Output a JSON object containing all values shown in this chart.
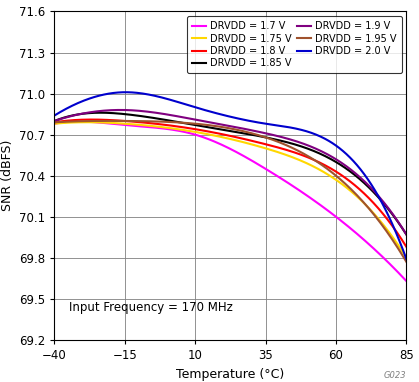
{
  "xlabel": "Temperature (°C)",
  "ylabel": "SNR (dBFS)",
  "xlim": [
    -40,
    85
  ],
  "ylim": [
    69.2,
    71.6
  ],
  "yticks": [
    69.2,
    69.5,
    69.8,
    70.1,
    70.4,
    70.7,
    71.0,
    71.3,
    71.6
  ],
  "xticks": [
    -40,
    -15,
    10,
    35,
    60,
    85
  ],
  "annotation": "Input Frequency = 170 MHz",
  "watermark": "G023",
  "series": [
    {
      "label": "DRVDD = 1.7 V",
      "color": "#FF00FF",
      "temp": [
        -40,
        -25,
        -15,
        10,
        35,
        60,
        85
      ],
      "snr": [
        70.78,
        70.79,
        70.77,
        70.7,
        70.45,
        70.1,
        69.63
      ]
    },
    {
      "label": "DRVDD = 1.75 V",
      "color": "#FFD700",
      "temp": [
        -40,
        -25,
        -15,
        10,
        35,
        60,
        85
      ],
      "snr": [
        70.78,
        70.79,
        70.78,
        70.72,
        70.6,
        70.37,
        69.8
      ]
    },
    {
      "label": "DRVDD = 1.8 V",
      "color": "#FF0000",
      "temp": [
        -40,
        -25,
        -15,
        10,
        35,
        60,
        85
      ],
      "snr": [
        70.79,
        70.81,
        70.8,
        70.74,
        70.63,
        70.43,
        69.88
      ]
    },
    {
      "label": "DRVDD = 1.85 V",
      "color": "#000000",
      "temp": [
        -40,
        -25,
        -15,
        10,
        35,
        60,
        85
      ],
      "snr": [
        70.8,
        70.86,
        70.85,
        70.77,
        70.68,
        70.5,
        69.97
      ]
    },
    {
      "label": "DRVDD = 1.9 V",
      "color": "#800080",
      "temp": [
        -40,
        -25,
        -15,
        10,
        35,
        60,
        85
      ],
      "snr": [
        70.8,
        70.87,
        70.88,
        70.81,
        70.71,
        70.52,
        69.97
      ]
    },
    {
      "label": "DRVDD = 1.95 V",
      "color": "#A0522D",
      "temp": [
        -40,
        -25,
        -15,
        10,
        35,
        60,
        85
      ],
      "snr": [
        70.79,
        70.8,
        70.8,
        70.78,
        70.68,
        70.4,
        69.77
      ]
    },
    {
      "label": "DRVDD = 2.0 V",
      "color": "#0000CD",
      "temp": [
        -40,
        -25,
        -15,
        10,
        35,
        60,
        85
      ],
      "snr": [
        70.84,
        70.98,
        71.01,
        70.9,
        70.78,
        70.62,
        69.79
      ]
    }
  ]
}
